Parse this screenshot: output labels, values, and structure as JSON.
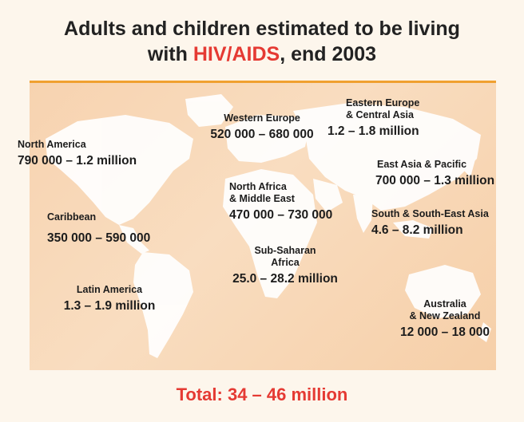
{
  "title": {
    "line1": "Adults and children estimated to be living",
    "line2_prefix": "with ",
    "line2_highlight": "HIV/AIDS",
    "line2_suffix": ", end 2003"
  },
  "colors": {
    "highlight": "#e53a33",
    "rule": "#f0a030",
    "land": "#ffffff",
    "sea": "#f7d3b0"
  },
  "regions": {
    "north_america": {
      "name": "North America",
      "value": "790 000 – 1.2 million"
    },
    "caribbean": {
      "name": "Caribbean",
      "value": "350 000 – 590 000"
    },
    "latin_america": {
      "name": "Latin America",
      "value": "1.3 – 1.9 million"
    },
    "western_europe": {
      "name": "Western Europe",
      "value": "520 000 – 680 000"
    },
    "eastern_europe": {
      "name1": "Eastern Europe",
      "name2": "& Central Asia",
      "value": "1.2 – 1.8 million"
    },
    "north_africa": {
      "name1": "North Africa",
      "name2": "& Middle East",
      "value": "470 000 – 730 000"
    },
    "sub_saharan": {
      "name1": "Sub-Saharan",
      "name2": "Africa",
      "value": "25.0 – 28.2 million"
    },
    "east_asia": {
      "name": "East Asia & Pacific",
      "value": "700 000 – 1.3 million"
    },
    "south_asia": {
      "name": "South & South-East Asia",
      "value": "4.6 – 8.2 million"
    },
    "australia": {
      "name1": "Australia",
      "name2": "& New Zealand",
      "value": "12 000 – 18 000"
    }
  },
  "total": "Total: 34 – 46 million"
}
